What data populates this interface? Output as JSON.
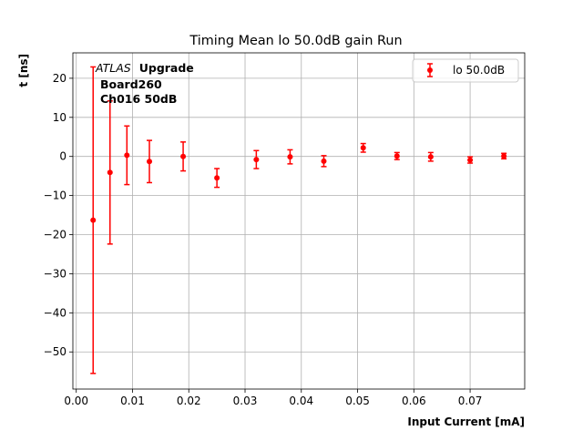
{
  "chart_data": {
    "type": "scatter",
    "title": "Timing Mean lo 50.0dB gain Run",
    "xlabel": "Input Current [mA]",
    "ylabel": "t [ns]",
    "xlim": [
      -0.0006,
      0.0797
    ],
    "ylim": [
      -59.5,
      26.5
    ],
    "xticks": [
      0.0,
      0.01,
      0.02,
      0.03,
      0.04,
      0.05,
      0.06,
      0.07
    ],
    "xtick_labels": [
      "0.00",
      "0.01",
      "0.02",
      "0.03",
      "0.04",
      "0.05",
      "0.06",
      "0.07"
    ],
    "yticks": [
      -50,
      -40,
      -30,
      -20,
      -10,
      0,
      10,
      20
    ],
    "ytick_labels": [
      "−50",
      "−40",
      "−30",
      "−20",
      "−10",
      "0",
      "10",
      "20"
    ],
    "grid": true,
    "legend_position": "upper-right",
    "series": [
      {
        "name": "lo 50.0dB",
        "color": "#ff0000",
        "marker": "circle",
        "x": [
          0.003,
          0.006,
          0.009,
          0.013,
          0.019,
          0.025,
          0.032,
          0.038,
          0.044,
          0.051,
          0.057,
          0.063,
          0.07,
          0.076
        ],
        "y": [
          -16.3,
          -4.1,
          0.3,
          -1.3,
          0.0,
          -5.5,
          -0.8,
          -0.1,
          -1.2,
          2.2,
          0.1,
          -0.1,
          -0.9,
          0.1
        ],
        "yerr": [
          39.2,
          18.3,
          7.5,
          5.4,
          3.7,
          2.4,
          2.3,
          1.8,
          1.4,
          1.1,
          0.9,
          1.1,
          0.8,
          0.7
        ]
      }
    ],
    "annotation": {
      "atlas": "ATLAS",
      "upgrade": "Upgrade",
      "line2": "Board260",
      "line3": "Ch016 50dB"
    }
  }
}
